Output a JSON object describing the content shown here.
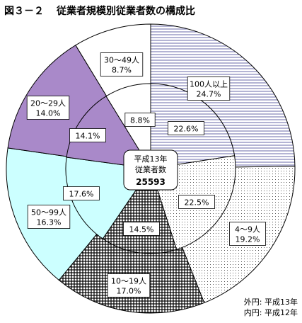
{
  "title_number": "図３－２",
  "title_text": "従業者規模別従業者数の構成比",
  "center": {
    "line1": "平成13年",
    "line2": "従業者数",
    "total": "25593"
  },
  "legend": {
    "outer": "外円: 平成13年",
    "inner": "内円: 平成12年"
  },
  "chart_data": {
    "type": "pie",
    "title": "従業者規模別従業者数の構成比",
    "categories": [
      "100人以上",
      "4～9人",
      "10～19人",
      "50～99人",
      "20～29人",
      "30～49人"
    ],
    "series": [
      {
        "name": "外円: 平成13年",
        "values": [
          24.7,
          19.2,
          17.0,
          16.3,
          14.0,
          8.7
        ]
      },
      {
        "name": "内円: 平成12年",
        "values": [
          22.6,
          22.5,
          14.5,
          17.6,
          14.1,
          8.8
        ]
      }
    ],
    "fills": [
      "#d8d8f0",
      "#ffffff",
      "#ffffff",
      "#ccffff",
      "#a989c9",
      "#ffffff"
    ],
    "patterns": [
      "hlines",
      "dots",
      "grid",
      "none",
      "none",
      "none"
    ],
    "outer_labels": [
      "100人以上\n24.7%",
      "4～9人\n19.2%",
      "10～19人\n17.0%",
      "50～99人\n16.3%",
      "20～29人\n14.0%",
      "30～49人\n8.7%"
    ],
    "inner_labels": [
      "22.6%",
      "22.5%",
      "14.5%",
      "17.6%",
      "14.1%",
      "8.8%"
    ]
  }
}
